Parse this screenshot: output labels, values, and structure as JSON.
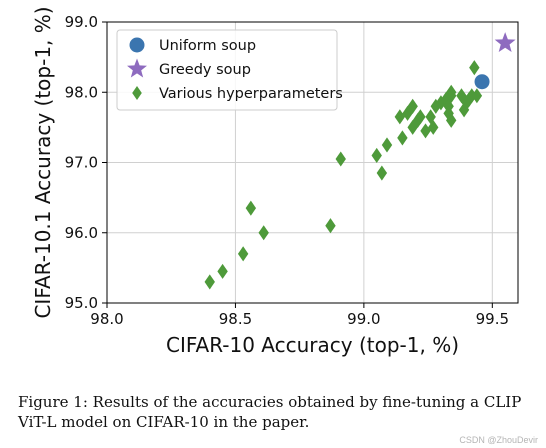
{
  "chart_data": {
    "type": "scatter",
    "xlabel": "CIFAR-10 Accuracy (top-1, %)",
    "ylabel": "CIFAR-10.1 Accuracy (top-1, %)",
    "xlim": [
      98.0,
      99.6
    ],
    "ylim": [
      95.0,
      99.0
    ],
    "xticks": [
      "98.0",
      "98.5",
      "99.0",
      "99.5"
    ],
    "yticks": [
      "95.0",
      "96.0",
      "97.0",
      "98.0",
      "99.0"
    ],
    "grid": true,
    "legend_position": "top-left",
    "series": [
      {
        "name": "Uniform soup",
        "marker": "circle",
        "color": "#3b75af",
        "points": [
          {
            "x": 99.46,
            "y": 98.15
          }
        ]
      },
      {
        "name": "Greedy soup",
        "marker": "star",
        "color": "#8e6bbf",
        "points": [
          {
            "x": 99.55,
            "y": 98.7
          }
        ]
      },
      {
        "name": "Various hyperparameters",
        "marker": "diamond",
        "color": "#4e9a3a",
        "points": [
          {
            "x": 98.4,
            "y": 95.3
          },
          {
            "x": 98.45,
            "y": 95.45
          },
          {
            "x": 98.53,
            "y": 95.7
          },
          {
            "x": 98.56,
            "y": 96.35
          },
          {
            "x": 98.61,
            "y": 96.0
          },
          {
            "x": 98.87,
            "y": 96.1
          },
          {
            "x": 98.91,
            "y": 97.05
          },
          {
            "x": 99.05,
            "y": 97.1
          },
          {
            "x": 99.07,
            "y": 96.85
          },
          {
            "x": 99.09,
            "y": 97.25
          },
          {
            "x": 99.14,
            "y": 97.65
          },
          {
            "x": 99.15,
            "y": 97.35
          },
          {
            "x": 99.17,
            "y": 97.7
          },
          {
            "x": 99.19,
            "y": 97.8
          },
          {
            "x": 99.19,
            "y": 97.5
          },
          {
            "x": 99.21,
            "y": 97.6
          },
          {
            "x": 99.22,
            "y": 97.65
          },
          {
            "x": 99.24,
            "y": 97.45
          },
          {
            "x": 99.26,
            "y": 97.65
          },
          {
            "x": 99.27,
            "y": 97.5
          },
          {
            "x": 99.28,
            "y": 97.8
          },
          {
            "x": 99.3,
            "y": 97.85
          },
          {
            "x": 99.32,
            "y": 97.9
          },
          {
            "x": 99.33,
            "y": 97.8
          },
          {
            "x": 99.33,
            "y": 97.7
          },
          {
            "x": 99.34,
            "y": 97.95
          },
          {
            "x": 99.34,
            "y": 98.0
          },
          {
            "x": 99.34,
            "y": 97.6
          },
          {
            "x": 99.38,
            "y": 97.95
          },
          {
            "x": 99.39,
            "y": 97.75
          },
          {
            "x": 99.4,
            "y": 97.85
          },
          {
            "x": 99.41,
            "y": 97.9
          },
          {
            "x": 99.42,
            "y": 97.95
          },
          {
            "x": 99.43,
            "y": 98.35
          },
          {
            "x": 99.44,
            "y": 97.95
          }
        ]
      }
    ]
  },
  "caption": "Figure 1: Results of the accuracies obtained by fine-tuning a CLIP ViT-L model on CIFAR-10 in the paper.",
  "watermark": "CSDN @ZhouDevir"
}
